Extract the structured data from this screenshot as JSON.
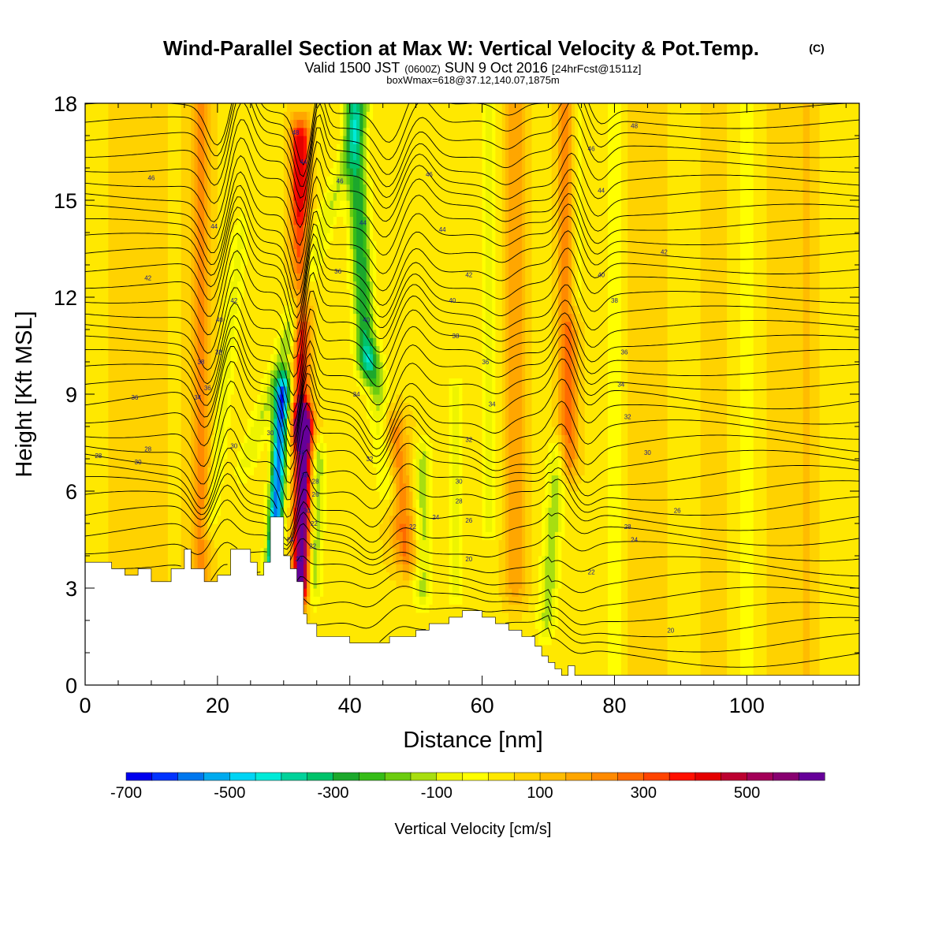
{
  "header": {
    "title": "Wind-Parallel Section at Max W: Vertical Velocity & Pot.Temp.",
    "copyright_mark": "(C)",
    "valid_prefix": "Valid 1500 JST",
    "valid_utc": "(0600Z)",
    "valid_date": "SUN 9 Oct 2016",
    "forecast_tag": "[24hrFcst@1511z]",
    "box_info": "boxWmax=618@37.12,140.07,1875m"
  },
  "chart_data": {
    "type": "heatmap",
    "xlabel": "Distance [nm]",
    "ylabel": "Height [Kft MSL]",
    "xlim": [
      0,
      117
    ],
    "ylim": [
      0,
      18
    ],
    "x_ticks": [
      0,
      20,
      40,
      60,
      80,
      100
    ],
    "y_ticks": [
      0,
      3,
      6,
      9,
      12,
      15,
      18
    ],
    "grid": false,
    "colorbar": {
      "label": "Vertical Velocity [cm/s]",
      "tick_values": [
        -700,
        -500,
        -300,
        -100,
        100,
        300,
        500
      ],
      "tick_labels": [
        "-700",
        "-500",
        "-300",
        "-100",
        "100",
        "300",
        "500"
      ],
      "levels_from": -700,
      "level_step": 50,
      "colors": [
        "#0000ee",
        "#0033ff",
        "#0077ee",
        "#00aaee",
        "#00d4f4",
        "#00ead8",
        "#00d29a",
        "#00c26a",
        "#1ca82c",
        "#36bc18",
        "#6ccc10",
        "#a8de10",
        "#eef400",
        "#ffff00",
        "#ffe800",
        "#ffd200",
        "#ffbc00",
        "#ffa600",
        "#ff8a00",
        "#ff6a00",
        "#ff4400",
        "#ff1000",
        "#e40000",
        "#bc0030",
        "#a30058",
        "#880070",
        "#660099"
      ]
    },
    "terrain_kft": {
      "x": [
        0,
        4,
        4,
        6,
        6,
        8,
        8,
        10,
        10,
        13,
        13,
        15,
        15,
        16,
        16,
        18,
        18,
        20,
        20,
        22,
        22,
        24,
        24,
        25,
        25,
        26,
        26,
        27,
        27,
        28,
        28,
        30,
        30,
        31,
        31,
        32,
        32,
        33,
        33,
        33.5,
        33.5,
        35,
        35,
        40,
        40,
        46,
        46,
        50,
        50,
        52,
        52,
        55,
        55,
        57,
        57,
        60,
        60,
        62,
        62,
        64,
        64,
        66,
        66,
        68,
        68,
        69,
        69,
        70,
        70,
        71,
        71,
        72,
        72,
        73,
        73,
        74,
        74,
        75,
        75,
        117
      ],
      "top": [
        3.8,
        3.8,
        3.6,
        3.6,
        3.4,
        3.4,
        3.6,
        3.6,
        3.2,
        3.2,
        3.6,
        3.6,
        4.2,
        4.2,
        3.6,
        3.6,
        3.2,
        3.2,
        3.4,
        3.4,
        4.2,
        4.2,
        4.2,
        4.2,
        3.8,
        3.8,
        3.4,
        3.4,
        3.8,
        3.8,
        5.2,
        5.2,
        4.0,
        4.0,
        3.6,
        3.6,
        3.2,
        3.2,
        2.2,
        2.2,
        1.9,
        1.9,
        1.5,
        1.5,
        1.3,
        1.3,
        1.5,
        1.5,
        1.7,
        1.7,
        1.9,
        1.9,
        2.1,
        2.1,
        2.3,
        2.3,
        2.1,
        2.1,
        1.9,
        1.9,
        1.7,
        1.7,
        1.5,
        1.5,
        1.2,
        1.2,
        0.9,
        0.9,
        0.7,
        0.7,
        0.5,
        0.5,
        0.3,
        0.3,
        0.6,
        0.6,
        0.3,
        0.3,
        0.3,
        0.3
      ]
    },
    "theta_contour_levels": [
      20,
      22,
      24,
      26,
      28,
      30,
      32,
      34,
      36,
      38,
      40,
      42,
      44,
      46,
      48
    ],
    "theta_contour_labels": [
      {
        "x": 2,
        "y": 7.1,
        "text": "28"
      },
      {
        "x": 8,
        "y": 6.9,
        "text": "30"
      },
      {
        "x": 9.5,
        "y": 7.3,
        "text": "28"
      },
      {
        "x": 7.5,
        "y": 8.9,
        "text": "36"
      },
      {
        "x": 9.5,
        "y": 12.6,
        "text": "42"
      },
      {
        "x": 10,
        "y": 15.7,
        "text": "46"
      },
      {
        "x": 17,
        "y": 8.9,
        "text": "34"
      },
      {
        "x": 18.5,
        "y": 9.2,
        "text": "36"
      },
      {
        "x": 17.5,
        "y": 10.0,
        "text": "38"
      },
      {
        "x": 20.2,
        "y": 10.3,
        "text": "38"
      },
      {
        "x": 20.3,
        "y": 11.3,
        "text": "40"
      },
      {
        "x": 22.5,
        "y": 11.9,
        "text": "42"
      },
      {
        "x": 19.5,
        "y": 14.2,
        "text": "44"
      },
      {
        "x": 22.5,
        "y": 7.4,
        "text": "30"
      },
      {
        "x": 28,
        "y": 7.8,
        "text": "30"
      },
      {
        "x": 31,
        "y": 4.5,
        "text": "24"
      },
      {
        "x": 32.3,
        "y": 3.9,
        "text": "22"
      },
      {
        "x": 33.5,
        "y": 5.4,
        "text": "30"
      },
      {
        "x": 33.2,
        "y": 6.5,
        "text": "38"
      },
      {
        "x": 32.7,
        "y": 7.2,
        "text": "36"
      },
      {
        "x": 34.6,
        "y": 5.0,
        "text": "22"
      },
      {
        "x": 34.4,
        "y": 4.3,
        "text": "22"
      },
      {
        "x": 34.8,
        "y": 5.9,
        "text": "26"
      },
      {
        "x": 34.8,
        "y": 6.3,
        "text": "28"
      },
      {
        "x": 31.8,
        "y": 17.1,
        "text": "48"
      },
      {
        "x": 33,
        "y": 16.2,
        "text": "44"
      },
      {
        "x": 38.5,
        "y": 15.6,
        "text": "46"
      },
      {
        "x": 38.2,
        "y": 12.8,
        "text": "36"
      },
      {
        "x": 42,
        "y": 14.3,
        "text": "44"
      },
      {
        "x": 42.5,
        "y": 11.3,
        "text": "40"
      },
      {
        "x": 41,
        "y": 9.0,
        "text": "34"
      },
      {
        "x": 43,
        "y": 7.0,
        "text": "32"
      },
      {
        "x": 52,
        "y": 15.8,
        "text": "46"
      },
      {
        "x": 54,
        "y": 14.1,
        "text": "44"
      },
      {
        "x": 58,
        "y": 12.7,
        "text": "42"
      },
      {
        "x": 55.5,
        "y": 11.9,
        "text": "40"
      },
      {
        "x": 56,
        "y": 10.8,
        "text": "38"
      },
      {
        "x": 60.5,
        "y": 10.0,
        "text": "36"
      },
      {
        "x": 61.5,
        "y": 8.7,
        "text": "34"
      },
      {
        "x": 58,
        "y": 7.6,
        "text": "32"
      },
      {
        "x": 56.5,
        "y": 6.3,
        "text": "30"
      },
      {
        "x": 56.5,
        "y": 5.7,
        "text": "28"
      },
      {
        "x": 58,
        "y": 5.1,
        "text": "26"
      },
      {
        "x": 53,
        "y": 5.2,
        "text": "24"
      },
      {
        "x": 49.5,
        "y": 4.9,
        "text": "22"
      },
      {
        "x": 58,
        "y": 3.9,
        "text": "20"
      },
      {
        "x": 83,
        "y": 17.3,
        "text": "48"
      },
      {
        "x": 76.5,
        "y": 16.6,
        "text": "46"
      },
      {
        "x": 78,
        "y": 15.3,
        "text": "44"
      },
      {
        "x": 87.5,
        "y": 13.4,
        "text": "42"
      },
      {
        "x": 78,
        "y": 12.7,
        "text": "40"
      },
      {
        "x": 80,
        "y": 11.9,
        "text": "38"
      },
      {
        "x": 81.5,
        "y": 10.3,
        "text": "36"
      },
      {
        "x": 81,
        "y": 9.3,
        "text": "34"
      },
      {
        "x": 82,
        "y": 8.3,
        "text": "32"
      },
      {
        "x": 85,
        "y": 7.2,
        "text": "30"
      },
      {
        "x": 89.5,
        "y": 5.4,
        "text": "26"
      },
      {
        "x": 82,
        "y": 4.9,
        "text": "28"
      },
      {
        "x": 83,
        "y": 4.5,
        "text": "24"
      },
      {
        "x": 76.5,
        "y": 3.5,
        "text": "22"
      },
      {
        "x": 88.5,
        "y": 1.7,
        "text": "20"
      }
    ]
  }
}
